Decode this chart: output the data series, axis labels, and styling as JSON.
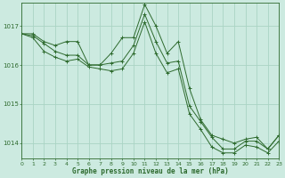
{
  "background_color": "#cceae0",
  "line_color": "#2d6a2d",
  "grid_color": "#aad4c4",
  "title": "Graphe pression niveau de la mer (hPa)",
  "xlim": [
    0,
    23
  ],
  "ylim": [
    1013.6,
    1017.6
  ],
  "yticks": [
    1014,
    1015,
    1016,
    1017
  ],
  "xticks": [
    0,
    1,
    2,
    3,
    4,
    5,
    6,
    7,
    8,
    9,
    10,
    11,
    12,
    13,
    14,
    15,
    16,
    17,
    18,
    19,
    20,
    21,
    22,
    23
  ],
  "series": [
    {
      "x": [
        0,
        1,
        2,
        3,
        4,
        5,
        6,
        7,
        8,
        9,
        10,
        11,
        12,
        13,
        14,
        15,
        16,
        17,
        18,
        19,
        20,
        21,
        22,
        23
      ],
      "y": [
        1016.8,
        1016.8,
        1016.6,
        1016.5,
        1016.6,
        1016.6,
        1016.0,
        1016.0,
        1016.3,
        1016.7,
        1016.7,
        1017.55,
        1017.0,
        1016.3,
        1016.6,
        1015.4,
        1014.6,
        1014.2,
        1014.1,
        1014.0,
        1014.1,
        1014.15,
        1013.85,
        1014.2
      ]
    },
    {
      "x": [
        0,
        1,
        2,
        3,
        4,
        5,
        6,
        7,
        8,
        9,
        10,
        11,
        12,
        13,
        14,
        15,
        16,
        17,
        18,
        19,
        20,
        21,
        22,
        23
      ],
      "y": [
        1016.8,
        1016.75,
        1016.55,
        1016.35,
        1016.25,
        1016.25,
        1016.0,
        1016.0,
        1016.05,
        1016.1,
        1016.5,
        1017.3,
        1016.6,
        1016.05,
        1016.1,
        1014.95,
        1014.55,
        1014.15,
        1013.85,
        1013.85,
        1014.05,
        1014.05,
        1013.85,
        1014.2
      ]
    },
    {
      "x": [
        0,
        1,
        2,
        3,
        4,
        5,
        6,
        7,
        8,
        9,
        10,
        11,
        12,
        13,
        14,
        15,
        16,
        17,
        18,
        19,
        20,
        21,
        22,
        23
      ],
      "y": [
        1016.8,
        1016.7,
        1016.35,
        1016.2,
        1016.1,
        1016.15,
        1015.95,
        1015.9,
        1015.85,
        1015.9,
        1016.3,
        1017.1,
        1016.3,
        1015.8,
        1015.9,
        1014.75,
        1014.35,
        1013.9,
        1013.75,
        1013.75,
        1013.95,
        1013.9,
        1013.75,
        1014.05
      ]
    }
  ]
}
